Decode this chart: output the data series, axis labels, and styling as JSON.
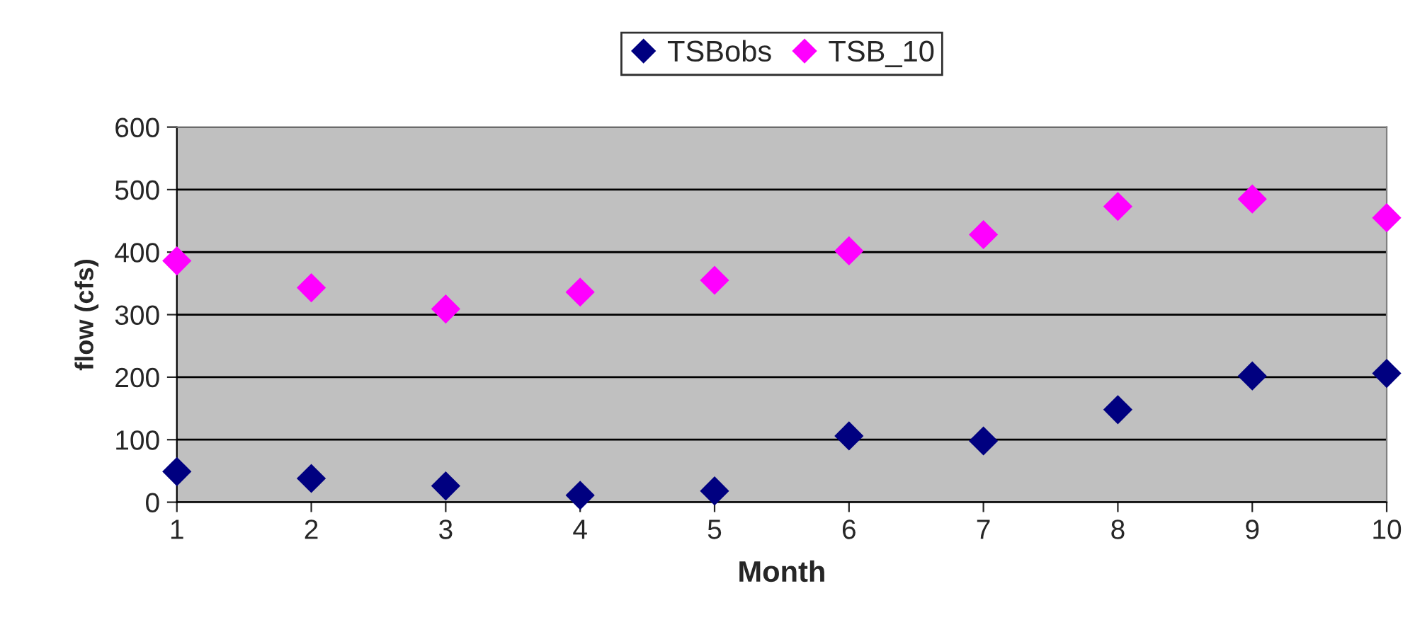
{
  "chart_data": {
    "type": "scatter",
    "xlabel": "Month",
    "ylabel": "flow (cfs)",
    "x": [
      1,
      2,
      3,
      4,
      5,
      6,
      7,
      8,
      9,
      10
    ],
    "series": [
      {
        "name": "TSBobs",
        "color": "#000080",
        "values": [
          49,
          38,
          26,
          11,
          18,
          106,
          98,
          148,
          202,
          206
        ]
      },
      {
        "name": "TSB_10",
        "color": "#ff00ff",
        "values": [
          386,
          343,
          309,
          336,
          355,
          402,
          428,
          473,
          485,
          455
        ]
      }
    ],
    "xlim": [
      1,
      10
    ],
    "xticks": [
      1,
      2,
      3,
      4,
      5,
      6,
      7,
      8,
      9,
      10
    ],
    "ylim": [
      0,
      600
    ],
    "yticks": [
      0,
      100,
      200,
      300,
      400,
      500,
      600
    ],
    "grid": "y",
    "legend": "top",
    "marker": "diamond"
  }
}
